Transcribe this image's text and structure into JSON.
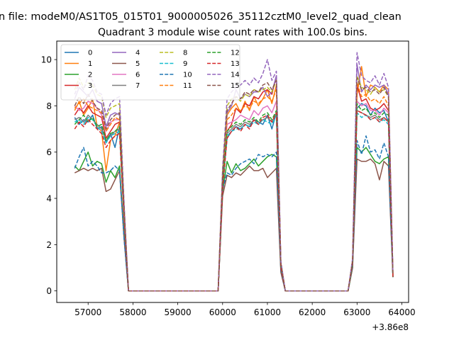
{
  "suptitle": "n file: modeM0/AS1T05_015T01_9000005026_35112cztM0_level2_quad_clean",
  "chart_data": {
    "type": "line",
    "title": "Quadrant 3 module wise count rates with 100.0s bins.",
    "xlabel": "",
    "ylabel": "",
    "x_offset_label": "+3.86e8",
    "xlim": [
      56300,
      64150
    ],
    "ylim": [
      -0.5,
      10.8
    ],
    "xticks": [
      "57000",
      "58000",
      "59000",
      "60000",
      "61000",
      "62000",
      "63000",
      "64000"
    ],
    "yticks": [
      "0",
      "2",
      "4",
      "6",
      "8",
      "10"
    ],
    "grid": false,
    "legend_position": "top-left",
    "x": [
      56700,
      56800,
      56900,
      57000,
      57100,
      57200,
      57300,
      57400,
      57500,
      57600,
      57700,
      57800,
      57900,
      58000,
      59900,
      60000,
      60100,
      60200,
      60300,
      60400,
      60500,
      60600,
      60700,
      60800,
      60900,
      61000,
      61100,
      61200,
      61300,
      61400,
      62800,
      62900,
      63000,
      63100,
      63200,
      63300,
      63400,
      63500,
      63600,
      63700,
      63800
    ],
    "series": [
      {
        "name": "0",
        "color": "#1f77b4",
        "dash": "solid",
        "values": [
          7.5,
          7.2,
          7.4,
          7.3,
          7.6,
          7.0,
          7.1,
          6.4,
          6.8,
          6.2,
          7.1,
          3.5,
          0,
          0,
          0,
          4.5,
          6.6,
          6.9,
          7.1,
          7.0,
          7.2,
          7.1,
          7.4,
          7.3,
          7.2,
          7.6,
          7.0,
          7.7,
          1.1,
          0,
          0,
          1.2,
          7.9,
          8.1,
          8.0,
          7.6,
          7.9,
          7.7,
          7.8,
          7.3,
          0.6
        ]
      },
      {
        "name": "1",
        "color": "#ff7f0e",
        "dash": "solid",
        "values": [
          7.8,
          8.2,
          7.6,
          7.9,
          8.3,
          7.1,
          6.9,
          5.2,
          6.5,
          6.7,
          7.3,
          3.4,
          0,
          0,
          0,
          4.6,
          7.6,
          7.9,
          8.1,
          7.7,
          8.2,
          7.8,
          8.4,
          8.0,
          8.3,
          8.7,
          8.1,
          8.9,
          1.2,
          0,
          0,
          1.3,
          8.5,
          9.7,
          8.4,
          8.9,
          8.8,
          8.6,
          8.9,
          8.7,
          0.7
        ]
      },
      {
        "name": "2",
        "color": "#2ca02c",
        "dash": "solid",
        "values": [
          5.4,
          5.2,
          5.6,
          6.0,
          5.4,
          5.6,
          5.5,
          4.7,
          5.2,
          4.9,
          5.4,
          2.4,
          0,
          0,
          0,
          4.3,
          5.6,
          5.1,
          5.5,
          5.2,
          5.3,
          5.5,
          5.7,
          5.4,
          5.6,
          5.8,
          5.9,
          5.8,
          0.9,
          0,
          0,
          1.0,
          6.2,
          6.0,
          6.2,
          5.9,
          5.6,
          5.5,
          5.7,
          5.8,
          0.6
        ]
      },
      {
        "name": "3",
        "color": "#d62728",
        "dash": "solid",
        "values": [
          7.6,
          7.9,
          7.7,
          8.0,
          7.7,
          7.6,
          7.5,
          6.6,
          6.9,
          7.2,
          7.3,
          3.4,
          0,
          0,
          0,
          4.8,
          6.9,
          7.2,
          7.9,
          7.7,
          8.1,
          8.0,
          8.4,
          8.3,
          8.6,
          8.7,
          8.5,
          9.3,
          1.2,
          0,
          0,
          1.2,
          8.9,
          8.2,
          8.3,
          7.9,
          7.8,
          7.9,
          8.1,
          7.8,
          0.7
        ]
      },
      {
        "name": "4",
        "color": "#9467bd",
        "dash": "solid",
        "values": [
          8.3,
          8.8,
          8.6,
          8.4,
          8.7,
          8.2,
          8.1,
          7.1,
          7.6,
          7.7,
          7.6,
          3.6,
          0,
          0,
          0,
          5.0,
          7.7,
          8.0,
          8.7,
          8.3,
          8.5,
          8.4,
          8.6,
          8.6,
          8.8,
          8.4,
          8.6,
          9.3,
          1.2,
          0,
          0,
          1.3,
          9.8,
          8.6,
          8.9,
          8.7,
          8.9,
          8.8,
          8.9,
          8.5,
          0.8
        ]
      },
      {
        "name": "5",
        "color": "#8c564b",
        "dash": "solid",
        "values": [
          5.1,
          5.2,
          5.3,
          5.2,
          5.3,
          5.2,
          5.3,
          4.3,
          4.4,
          4.8,
          5.2,
          2.3,
          0,
          0,
          0,
          4.1,
          5.0,
          4.9,
          5.1,
          5.0,
          5.2,
          5.4,
          5.2,
          5.2,
          5.3,
          4.9,
          5.1,
          5.3,
          0.8,
          0,
          0,
          1.0,
          5.7,
          5.6,
          5.6,
          5.7,
          5.5,
          4.8,
          5.6,
          5.4,
          0.6
        ]
      },
      {
        "name": "6",
        "color": "#e377c2",
        "dash": "solid",
        "values": [
          8.0,
          7.8,
          7.9,
          8.2,
          8.1,
          7.9,
          7.6,
          6.9,
          7.3,
          7.4,
          7.4,
          3.5,
          0,
          0,
          0,
          4.7,
          7.2,
          7.3,
          7.4,
          7.6,
          7.5,
          7.4,
          7.8,
          7.6,
          7.9,
          8.0,
          7.7,
          8.2,
          1.1,
          0,
          0,
          1.2,
          8.2,
          8.0,
          8.1,
          7.8,
          7.8,
          7.6,
          7.9,
          7.7,
          0.7
        ]
      },
      {
        "name": "7",
        "color": "#7f7f7f",
        "dash": "solid",
        "values": [
          7.4,
          7.5,
          7.3,
          7.6,
          7.4,
          7.2,
          7.0,
          6.5,
          6.7,
          6.9,
          7.0,
          3.3,
          0,
          0,
          0,
          4.6,
          6.8,
          7.0,
          7.2,
          7.1,
          7.3,
          7.2,
          7.4,
          7.2,
          7.4,
          7.5,
          7.3,
          7.7,
          1.1,
          0,
          0,
          1.2,
          7.8,
          7.7,
          7.6,
          7.5,
          7.6,
          7.4,
          7.5,
          7.3,
          0.6
        ]
      },
      {
        "name": "8",
        "color": "#bcbd22",
        "dash": "dashed",
        "values": [
          8.7,
          9.2,
          8.8,
          9.0,
          8.9,
          8.5,
          8.4,
          7.5,
          7.9,
          8.0,
          8.1,
          3.8,
          0,
          0,
          0,
          5.2,
          8.0,
          8.3,
          8.4,
          8.2,
          8.5,
          8.4,
          8.7,
          8.6,
          8.7,
          8.8,
          8.6,
          9.1,
          1.2,
          0,
          0,
          1.3,
          9.3,
          8.8,
          8.7,
          8.5,
          8.8,
          8.6,
          8.7,
          8.4,
          0.8
        ]
      },
      {
        "name": "9",
        "color": "#17becf",
        "dash": "dashed",
        "values": [
          7.3,
          7.4,
          7.2,
          7.5,
          7.4,
          7.1,
          6.9,
          6.4,
          6.7,
          6.8,
          6.9,
          3.2,
          0,
          0,
          0,
          4.5,
          6.7,
          6.9,
          7.0,
          7.0,
          7.2,
          7.1,
          7.3,
          7.2,
          7.4,
          7.3,
          7.2,
          7.6,
          1.0,
          0,
          0,
          1.2,
          7.7,
          7.5,
          7.6,
          7.4,
          7.5,
          7.3,
          7.4,
          7.2,
          0.6
        ]
      },
      {
        "name": "10",
        "color": "#1f77b4",
        "dash": "dashed",
        "values": [
          5.3,
          5.8,
          6.2,
          5.4,
          5.6,
          5.4,
          5.1,
          5.1,
          5.2,
          5.4,
          5.2,
          2.3,
          0,
          0,
          0,
          4.4,
          5.1,
          5.0,
          5.3,
          5.5,
          5.6,
          5.7,
          5.5,
          5.9,
          5.8,
          5.9,
          5.8,
          6.0,
          0.9,
          0,
          0,
          1.1,
          6.5,
          5.9,
          6.7,
          6.0,
          6.1,
          5.7,
          6.4,
          5.8,
          0.6
        ]
      },
      {
        "name": "11",
        "color": "#ff7f0e",
        "dash": "dashed",
        "values": [
          7.9,
          8.1,
          8.3,
          8.0,
          7.9,
          7.8,
          7.7,
          6.9,
          7.2,
          7.5,
          7.4,
          3.5,
          0,
          0,
          0,
          5.1,
          7.4,
          7.6,
          7.9,
          7.8,
          8.0,
          7.9,
          8.2,
          8.1,
          8.3,
          8.4,
          8.2,
          8.7,
          1.2,
          0,
          0,
          1.3,
          9.0,
          8.4,
          8.5,
          8.2,
          8.3,
          8.1,
          8.4,
          8.0,
          0.7
        ]
      },
      {
        "name": "12",
        "color": "#2ca02c",
        "dash": "dashed",
        "values": [
          7.2,
          7.4,
          7.6,
          7.3,
          7.5,
          7.1,
          7.2,
          6.5,
          6.8,
          6.9,
          7.1,
          3.3,
          0,
          0,
          0,
          4.6,
          6.9,
          7.1,
          7.3,
          7.2,
          7.4,
          7.3,
          7.5,
          7.3,
          7.6,
          7.7,
          7.4,
          7.8,
          1.1,
          0,
          0,
          1.2,
          8.1,
          7.8,
          7.9,
          7.6,
          7.7,
          7.5,
          7.7,
          7.6,
          0.6
        ]
      },
      {
        "name": "13",
        "color": "#d62728",
        "dash": "dashed",
        "values": [
          7.0,
          7.3,
          7.1,
          7.4,
          7.2,
          7.0,
          6.8,
          6.2,
          6.5,
          6.7,
          6.8,
          3.2,
          0,
          0,
          0,
          4.4,
          6.6,
          6.9,
          7.1,
          6.9,
          7.2,
          7.0,
          7.4,
          7.2,
          7.5,
          7.6,
          7.3,
          7.7,
          1.0,
          0,
          0,
          1.2,
          7.8,
          7.7,
          7.6,
          7.4,
          7.5,
          7.3,
          7.5,
          7.3,
          0.6
        ]
      },
      {
        "name": "14",
        "color": "#9467bd",
        "dash": "dashed",
        "values": [
          8.5,
          9.0,
          8.7,
          9.3,
          9.1,
          8.6,
          8.5,
          7.6,
          8.1,
          8.3,
          8.4,
          3.9,
          0,
          0,
          0,
          5.3,
          8.3,
          8.6,
          8.8,
          8.9,
          9.1,
          8.9,
          9.2,
          9.0,
          9.4,
          10.0,
          9.1,
          9.5,
          1.3,
          0,
          0,
          1.4,
          10.3,
          9.3,
          9.1,
          9.0,
          9.3,
          8.9,
          9.4,
          8.8,
          0.8
        ]
      },
      {
        "name": "15",
        "color": "#8c564b",
        "dash": "dashed",
        "values": [
          8.0,
          8.4,
          8.1,
          8.5,
          8.2,
          7.9,
          7.8,
          7.0,
          7.4,
          7.6,
          7.7,
          3.6,
          0,
          0,
          0,
          5.0,
          7.8,
          8.1,
          8.4,
          8.3,
          8.6,
          8.5,
          8.7,
          8.6,
          8.9,
          9.0,
          8.7,
          9.1,
          1.2,
          0,
          0,
          1.3,
          9.2,
          8.7,
          8.8,
          8.6,
          8.7,
          8.5,
          8.8,
          8.4,
          0.7
        ]
      }
    ]
  }
}
